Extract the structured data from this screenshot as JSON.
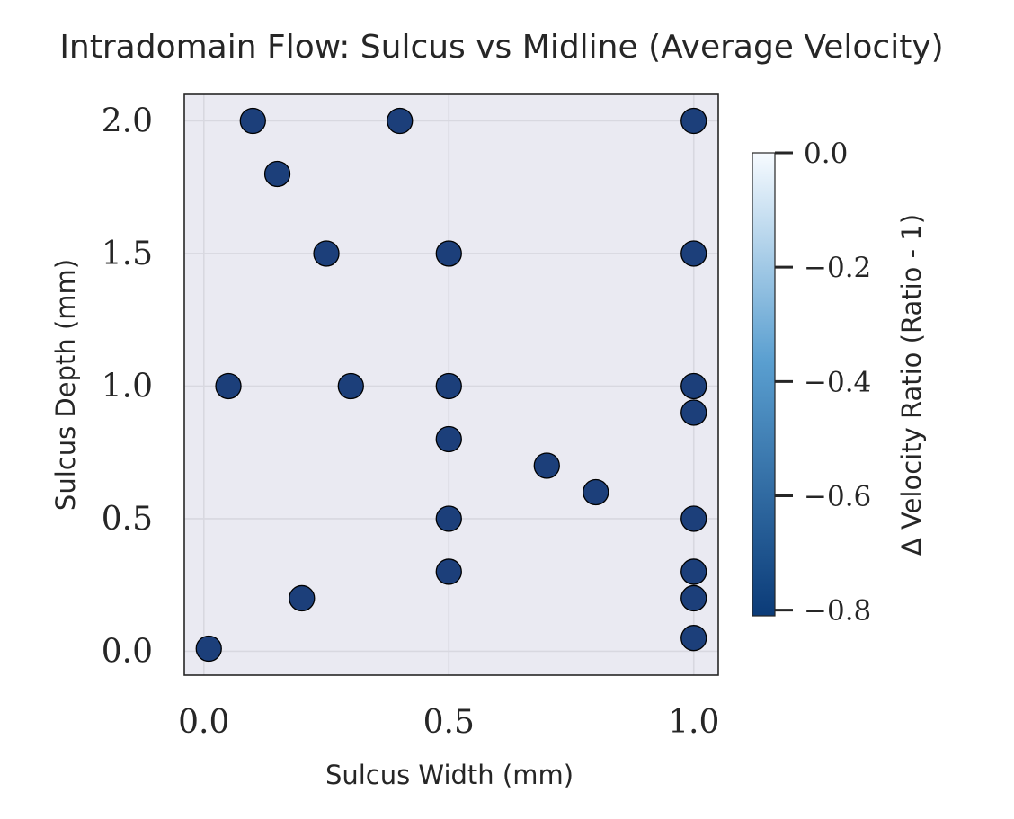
{
  "chart_data": {
    "type": "scatter",
    "title": "Intradomain Flow: Sulcus vs Midline (Average Velocity)",
    "xlabel": "Sulcus Width (mm)",
    "ylabel": "Sulcus Depth (mm)",
    "xlim": [
      -0.04,
      1.05
    ],
    "ylim": [
      -0.09,
      2.1
    ],
    "xticks": [
      0.0,
      0.5,
      1.0
    ],
    "xtick_labels": [
      "0.0",
      "0.5",
      "1.0"
    ],
    "yticks": [
      0.0,
      0.5,
      1.0,
      1.5,
      2.0
    ],
    "ytick_labels": [
      "0.0",
      "0.5",
      "1.0",
      "1.5",
      "2.0"
    ],
    "grid": true,
    "background_color": "#eaeaf2",
    "marker_color": "#1c3f7a",
    "marker_edge_color": "#000000",
    "colorbar": {
      "label": "Δ Velocity Ratio (Ratio - 1)",
      "range": [
        -0.81,
        0.0
      ],
      "ticks": [
        0.0,
        -0.2,
        -0.4,
        -0.6,
        -0.8
      ],
      "tick_labels": [
        "0.0",
        "−0.2",
        "−0.4",
        "−0.6",
        "−0.8"
      ],
      "colormap": "Blues_r",
      "color_low": "#0b3b78",
      "color_mid": "#5a9fd0",
      "color_high": "#f7fbff"
    },
    "points": [
      {
        "x": 0.1,
        "y": 2.0
      },
      {
        "x": 0.4,
        "y": 2.0
      },
      {
        "x": 1.0,
        "y": 2.0
      },
      {
        "x": 0.15,
        "y": 1.8
      },
      {
        "x": 0.25,
        "y": 1.5
      },
      {
        "x": 0.5,
        "y": 1.5
      },
      {
        "x": 1.0,
        "y": 1.5
      },
      {
        "x": 0.05,
        "y": 1.0
      },
      {
        "x": 0.3,
        "y": 1.0
      },
      {
        "x": 0.5,
        "y": 1.0
      },
      {
        "x": 1.0,
        "y": 1.0
      },
      {
        "x": 1.0,
        "y": 0.9
      },
      {
        "x": 0.5,
        "y": 0.8
      },
      {
        "x": 0.7,
        "y": 0.7
      },
      {
        "x": 0.8,
        "y": 0.6
      },
      {
        "x": 0.5,
        "y": 0.5
      },
      {
        "x": 1.0,
        "y": 0.5
      },
      {
        "x": 0.5,
        "y": 0.3
      },
      {
        "x": 1.0,
        "y": 0.3
      },
      {
        "x": 0.2,
        "y": 0.2
      },
      {
        "x": 1.0,
        "y": 0.2
      },
      {
        "x": 1.0,
        "y": 0.05
      },
      {
        "x": 0.01,
        "y": 0.01
      }
    ]
  }
}
